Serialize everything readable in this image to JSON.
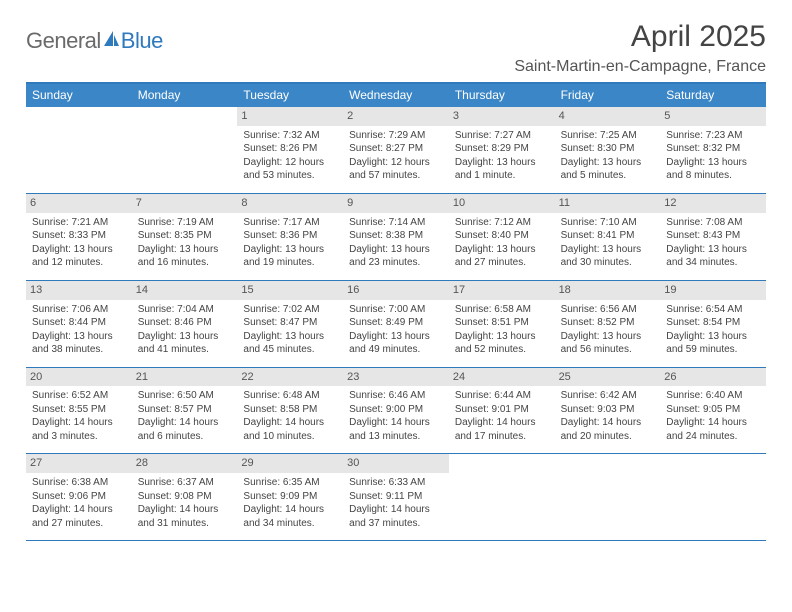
{
  "brand": {
    "general": "General",
    "blue": "Blue"
  },
  "title": "April 2025",
  "location": "Saint-Martin-en-Campagne, France",
  "colors": {
    "header_bar": "#3b86c7",
    "border": "#2f79bd",
    "daynum_bg": "#e6e6e6",
    "text": "#444444",
    "logo_gray": "#6a6a6a",
    "logo_blue": "#2f79bd"
  },
  "day_labels": [
    "Sunday",
    "Monday",
    "Tuesday",
    "Wednesday",
    "Thursday",
    "Friday",
    "Saturday"
  ],
  "weeks": [
    [
      null,
      null,
      {
        "n": "1",
        "sr": "Sunrise: 7:32 AM",
        "ss": "Sunset: 8:26 PM",
        "dl": "Daylight: 12 hours and 53 minutes."
      },
      {
        "n": "2",
        "sr": "Sunrise: 7:29 AM",
        "ss": "Sunset: 8:27 PM",
        "dl": "Daylight: 12 hours and 57 minutes."
      },
      {
        "n": "3",
        "sr": "Sunrise: 7:27 AM",
        "ss": "Sunset: 8:29 PM",
        "dl": "Daylight: 13 hours and 1 minute."
      },
      {
        "n": "4",
        "sr": "Sunrise: 7:25 AM",
        "ss": "Sunset: 8:30 PM",
        "dl": "Daylight: 13 hours and 5 minutes."
      },
      {
        "n": "5",
        "sr": "Sunrise: 7:23 AM",
        "ss": "Sunset: 8:32 PM",
        "dl": "Daylight: 13 hours and 8 minutes."
      }
    ],
    [
      {
        "n": "6",
        "sr": "Sunrise: 7:21 AM",
        "ss": "Sunset: 8:33 PM",
        "dl": "Daylight: 13 hours and 12 minutes."
      },
      {
        "n": "7",
        "sr": "Sunrise: 7:19 AM",
        "ss": "Sunset: 8:35 PM",
        "dl": "Daylight: 13 hours and 16 minutes."
      },
      {
        "n": "8",
        "sr": "Sunrise: 7:17 AM",
        "ss": "Sunset: 8:36 PM",
        "dl": "Daylight: 13 hours and 19 minutes."
      },
      {
        "n": "9",
        "sr": "Sunrise: 7:14 AM",
        "ss": "Sunset: 8:38 PM",
        "dl": "Daylight: 13 hours and 23 minutes."
      },
      {
        "n": "10",
        "sr": "Sunrise: 7:12 AM",
        "ss": "Sunset: 8:40 PM",
        "dl": "Daylight: 13 hours and 27 minutes."
      },
      {
        "n": "11",
        "sr": "Sunrise: 7:10 AM",
        "ss": "Sunset: 8:41 PM",
        "dl": "Daylight: 13 hours and 30 minutes."
      },
      {
        "n": "12",
        "sr": "Sunrise: 7:08 AM",
        "ss": "Sunset: 8:43 PM",
        "dl": "Daylight: 13 hours and 34 minutes."
      }
    ],
    [
      {
        "n": "13",
        "sr": "Sunrise: 7:06 AM",
        "ss": "Sunset: 8:44 PM",
        "dl": "Daylight: 13 hours and 38 minutes."
      },
      {
        "n": "14",
        "sr": "Sunrise: 7:04 AM",
        "ss": "Sunset: 8:46 PM",
        "dl": "Daylight: 13 hours and 41 minutes."
      },
      {
        "n": "15",
        "sr": "Sunrise: 7:02 AM",
        "ss": "Sunset: 8:47 PM",
        "dl": "Daylight: 13 hours and 45 minutes."
      },
      {
        "n": "16",
        "sr": "Sunrise: 7:00 AM",
        "ss": "Sunset: 8:49 PM",
        "dl": "Daylight: 13 hours and 49 minutes."
      },
      {
        "n": "17",
        "sr": "Sunrise: 6:58 AM",
        "ss": "Sunset: 8:51 PM",
        "dl": "Daylight: 13 hours and 52 minutes."
      },
      {
        "n": "18",
        "sr": "Sunrise: 6:56 AM",
        "ss": "Sunset: 8:52 PM",
        "dl": "Daylight: 13 hours and 56 minutes."
      },
      {
        "n": "19",
        "sr": "Sunrise: 6:54 AM",
        "ss": "Sunset: 8:54 PM",
        "dl": "Daylight: 13 hours and 59 minutes."
      }
    ],
    [
      {
        "n": "20",
        "sr": "Sunrise: 6:52 AM",
        "ss": "Sunset: 8:55 PM",
        "dl": "Daylight: 14 hours and 3 minutes."
      },
      {
        "n": "21",
        "sr": "Sunrise: 6:50 AM",
        "ss": "Sunset: 8:57 PM",
        "dl": "Daylight: 14 hours and 6 minutes."
      },
      {
        "n": "22",
        "sr": "Sunrise: 6:48 AM",
        "ss": "Sunset: 8:58 PM",
        "dl": "Daylight: 14 hours and 10 minutes."
      },
      {
        "n": "23",
        "sr": "Sunrise: 6:46 AM",
        "ss": "Sunset: 9:00 PM",
        "dl": "Daylight: 14 hours and 13 minutes."
      },
      {
        "n": "24",
        "sr": "Sunrise: 6:44 AM",
        "ss": "Sunset: 9:01 PM",
        "dl": "Daylight: 14 hours and 17 minutes."
      },
      {
        "n": "25",
        "sr": "Sunrise: 6:42 AM",
        "ss": "Sunset: 9:03 PM",
        "dl": "Daylight: 14 hours and 20 minutes."
      },
      {
        "n": "26",
        "sr": "Sunrise: 6:40 AM",
        "ss": "Sunset: 9:05 PM",
        "dl": "Daylight: 14 hours and 24 minutes."
      }
    ],
    [
      {
        "n": "27",
        "sr": "Sunrise: 6:38 AM",
        "ss": "Sunset: 9:06 PM",
        "dl": "Daylight: 14 hours and 27 minutes."
      },
      {
        "n": "28",
        "sr": "Sunrise: 6:37 AM",
        "ss": "Sunset: 9:08 PM",
        "dl": "Daylight: 14 hours and 31 minutes."
      },
      {
        "n": "29",
        "sr": "Sunrise: 6:35 AM",
        "ss": "Sunset: 9:09 PM",
        "dl": "Daylight: 14 hours and 34 minutes."
      },
      {
        "n": "30",
        "sr": "Sunrise: 6:33 AM",
        "ss": "Sunset: 9:11 PM",
        "dl": "Daylight: 14 hours and 37 minutes."
      },
      null,
      null,
      null
    ]
  ]
}
